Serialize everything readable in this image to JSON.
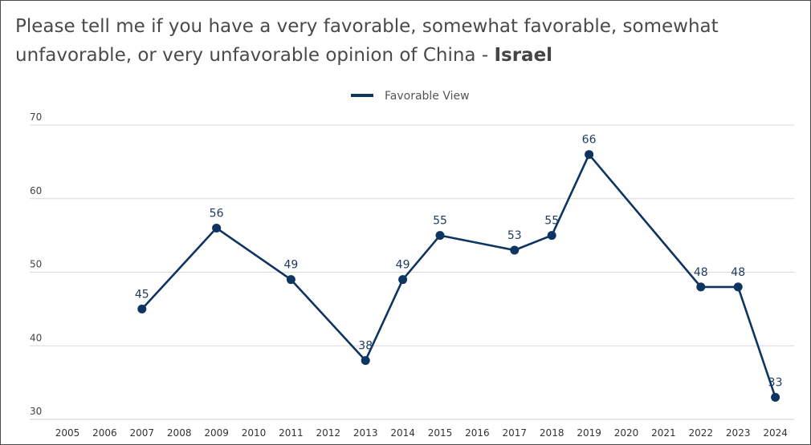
{
  "title_prefix": "Please tell me if you have a very favorable, somewhat favorable, somewhat unfavorable, or very unfavorable opinion of China - ",
  "title_country": "Israel",
  "colors": {
    "series": "#0e3461",
    "grid": "#d9d9d9"
  },
  "chart_data": {
    "type": "line",
    "categories": [
      "2005",
      "2006",
      "2007",
      "2008",
      "2009",
      "2010",
      "2011",
      "2012",
      "2013",
      "2014",
      "2015",
      "2016",
      "2017",
      "2018",
      "2019",
      "2020",
      "2021",
      "2022",
      "2023",
      "2024"
    ],
    "series": [
      {
        "name": "Favorable View",
        "values": [
          null,
          null,
          45,
          null,
          56,
          null,
          49,
          null,
          38,
          49,
          55,
          null,
          53,
          55,
          66,
          null,
          null,
          48,
          48,
          33
        ]
      }
    ],
    "y_ticks": [
      30,
      40,
      50,
      60,
      70
    ],
    "ylim": [
      30,
      70
    ],
    "grid": true,
    "legend_position": "top-center",
    "data_labels": true
  }
}
